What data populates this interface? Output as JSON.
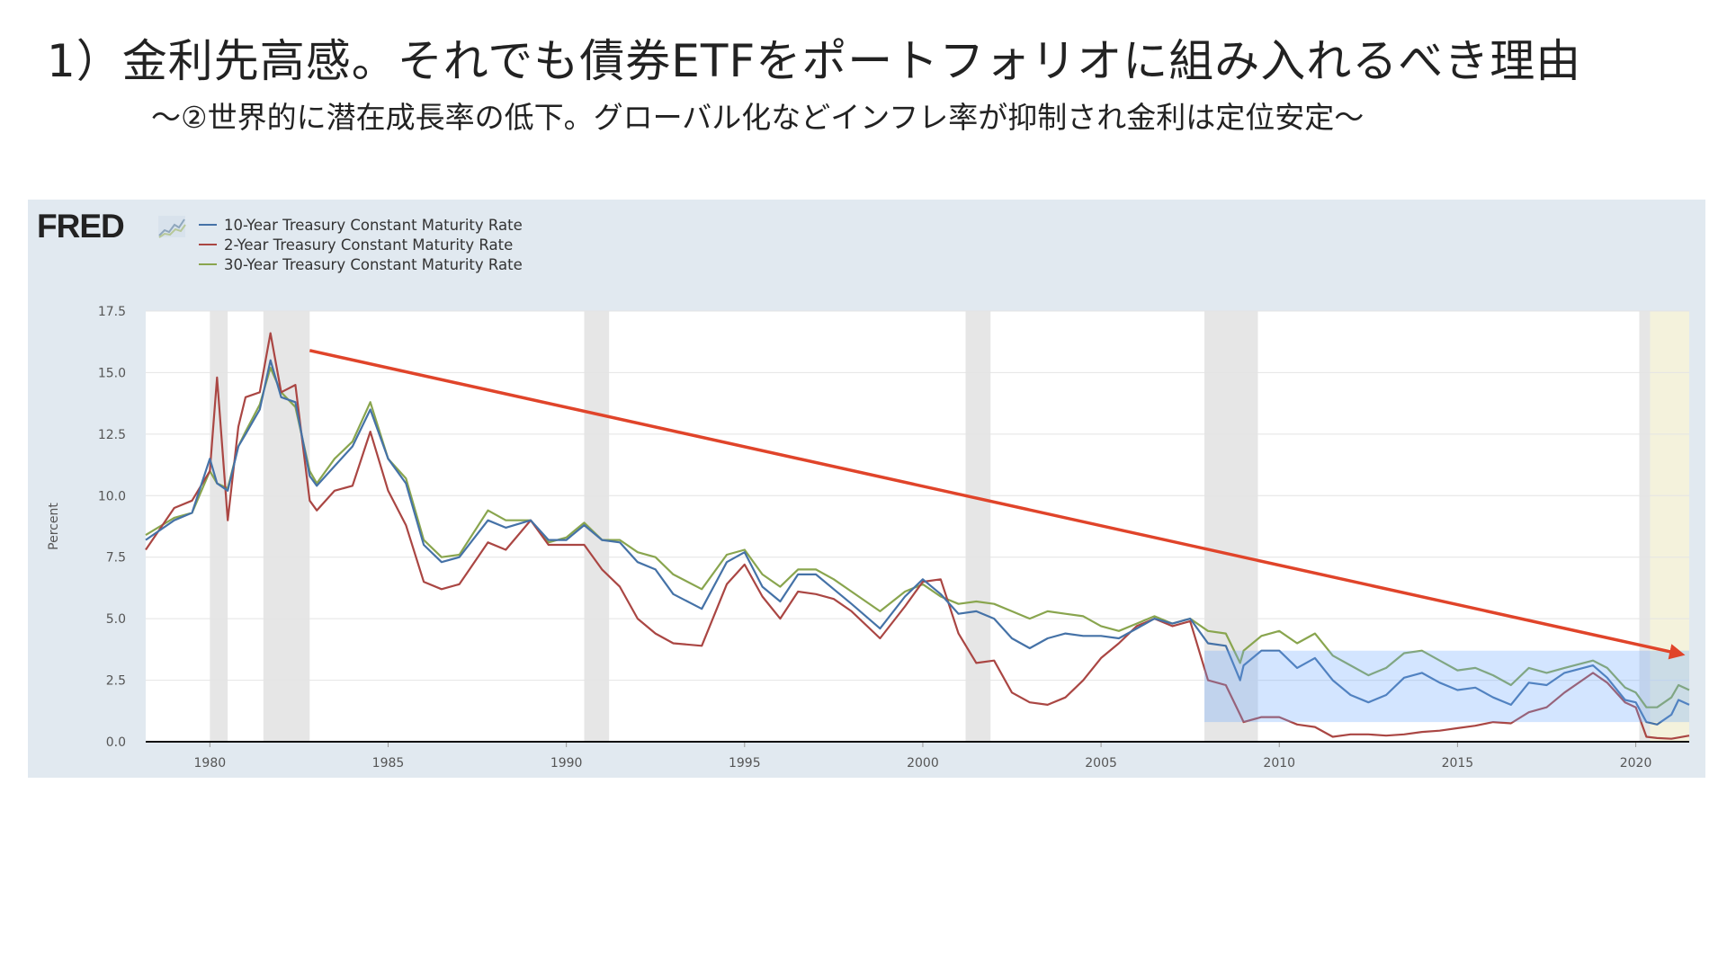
{
  "slide": {
    "title": "1）金利先高感。それでも債券ETFをポートフォリオに組み入れるべき理由",
    "subtitle": "〜②世界的に潜在成長率の低下。グローバル化などインフレ率が抑制され金利は定位安定〜"
  },
  "chart_data": {
    "type": "line",
    "source_logo": "FRED",
    "ylabel": "Percent",
    "xlim": [
      1978.2,
      2021.5
    ],
    "ylim": [
      0,
      17.5
    ],
    "yticks": [
      "0.0",
      "2.5",
      "5.0",
      "7.5",
      "10.0",
      "12.5",
      "15.0",
      "17.5"
    ],
    "xticks": [
      "1980",
      "1985",
      "1990",
      "1995",
      "2000",
      "2005",
      "2010",
      "2015",
      "2020"
    ],
    "recessions": [
      [
        1980.0,
        1980.5
      ],
      [
        1981.5,
        1982.8
      ],
      [
        1990.5,
        1991.2
      ],
      [
        2001.2,
        2001.9
      ],
      [
        2007.9,
        2009.4
      ],
      [
        2020.1,
        2020.4
      ]
    ],
    "highlight_period": [
      2020.1,
      2021.5
    ],
    "annotation_box": {
      "x": [
        2007.9,
        2021.5
      ],
      "y": [
        0.8,
        3.7
      ]
    },
    "trend_arrow": {
      "from": [
        1982.8,
        15.9
      ],
      "to": [
        2021.3,
        3.55
      ]
    },
    "x": [
      1978.2,
      1979.0,
      1979.5,
      1980.0,
      1980.2,
      1980.5,
      1980.8,
      1981.0,
      1981.4,
      1981.7,
      1982.0,
      1982.4,
      1982.8,
      1983.0,
      1983.5,
      1984.0,
      1984.5,
      1985.0,
      1985.5,
      1986.0,
      1986.5,
      1987.0,
      1987.8,
      1988.3,
      1989.0,
      1989.5,
      1990.0,
      1990.5,
      1991.0,
      1991.5,
      1992.0,
      1992.5,
      1993.0,
      1993.8,
      1994.5,
      1995.0,
      1995.5,
      1996.0,
      1996.5,
      1997.0,
      1997.5,
      1998.0,
      1998.8,
      1999.5,
      2000.0,
      2000.5,
      2001.0,
      2001.5,
      2002.0,
      2002.5,
      2003.0,
      2003.5,
      2004.0,
      2004.5,
      2005.0,
      2005.5,
      2006.0,
      2006.5,
      2007.0,
      2007.5,
      2008.0,
      2008.5,
      2008.9,
      2009.0,
      2009.5,
      2010.0,
      2010.5,
      2011.0,
      2011.5,
      2012.0,
      2012.5,
      2013.0,
      2013.5,
      2014.0,
      2014.5,
      2015.0,
      2015.5,
      2016.0,
      2016.5,
      2017.0,
      2017.5,
      2018.0,
      2018.8,
      2019.2,
      2019.7,
      2020.0,
      2020.3,
      2020.6,
      2021.0,
      2021.2,
      2021.5
    ],
    "series": [
      {
        "name": "10-Year Treasury Constant Maturity Rate",
        "color": "#4572a7",
        "values": [
          8.2,
          9.0,
          9.3,
          11.5,
          10.5,
          10.2,
          12.0,
          12.5,
          13.5,
          15.5,
          14.0,
          13.8,
          10.8,
          10.4,
          11.2,
          12.0,
          13.5,
          11.5,
          10.5,
          8.0,
          7.3,
          7.5,
          9.0,
          8.7,
          9.0,
          8.2,
          8.2,
          8.8,
          8.2,
          8.1,
          7.3,
          7.0,
          6.0,
          5.4,
          7.3,
          7.7,
          6.3,
          5.7,
          6.8,
          6.8,
          6.2,
          5.6,
          4.6,
          5.9,
          6.6,
          6.0,
          5.2,
          5.3,
          5.0,
          4.2,
          3.8,
          4.2,
          4.4,
          4.3,
          4.3,
          4.2,
          4.6,
          5.0,
          4.8,
          5.0,
          4.0,
          3.9,
          2.5,
          3.1,
          3.7,
          3.7,
          3.0,
          3.4,
          2.5,
          1.9,
          1.6,
          1.9,
          2.6,
          2.8,
          2.4,
          2.1,
          2.2,
          1.8,
          1.5,
          2.4,
          2.3,
          2.8,
          3.1,
          2.6,
          1.7,
          1.6,
          0.8,
          0.7,
          1.1,
          1.7,
          1.5
        ]
      },
      {
        "name": "2-Year Treasury Constant Maturity Rate",
        "color": "#aa4643",
        "values": [
          7.8,
          9.5,
          9.8,
          11.0,
          14.8,
          9.0,
          12.8,
          14.0,
          14.2,
          16.6,
          14.2,
          14.5,
          9.8,
          9.4,
          10.2,
          10.4,
          12.6,
          10.2,
          8.8,
          6.5,
          6.2,
          6.4,
          8.1,
          7.8,
          9.0,
          8.0,
          8.0,
          8.0,
          7.0,
          6.3,
          5.0,
          4.4,
          4.0,
          3.9,
          6.4,
          7.2,
          5.9,
          5.0,
          6.1,
          6.0,
          5.8,
          5.3,
          4.2,
          5.5,
          6.5,
          6.6,
          4.4,
          3.2,
          3.3,
          2.0,
          1.6,
          1.5,
          1.8,
          2.5,
          3.4,
          4.0,
          4.7,
          5.0,
          4.7,
          4.9,
          2.5,
          2.3,
          1.1,
          0.8,
          1.0,
          1.0,
          0.7,
          0.6,
          0.2,
          0.3,
          0.3,
          0.25,
          0.3,
          0.4,
          0.45,
          0.55,
          0.65,
          0.8,
          0.75,
          1.2,
          1.4,
          2.0,
          2.8,
          2.4,
          1.6,
          1.4,
          0.2,
          0.15,
          0.12,
          0.17,
          0.25
        ]
      },
      {
        "name": "30-Year Treasury Constant Maturity Rate",
        "color": "#89a54e",
        "values": [
          8.4,
          9.1,
          9.3,
          11.0,
          10.5,
          10.3,
          12.0,
          12.6,
          13.7,
          15.2,
          14.2,
          13.6,
          11.0,
          10.5,
          11.5,
          12.2,
          13.8,
          11.5,
          10.7,
          8.2,
          7.5,
          7.6,
          9.4,
          9.0,
          9.0,
          8.1,
          8.3,
          8.9,
          8.2,
          8.2,
          7.7,
          7.5,
          6.8,
          6.2,
          7.6,
          7.8,
          6.8,
          6.3,
          7.0,
          7.0,
          6.6,
          6.1,
          5.3,
          6.1,
          6.4,
          5.9,
          5.6,
          5.7,
          5.6,
          5.3,
          5.0,
          5.3,
          5.2,
          5.1,
          4.7,
          4.5,
          4.8,
          5.1,
          4.8,
          5.0,
          4.5,
          4.4,
          3.2,
          3.7,
          4.3,
          4.5,
          4.0,
          4.4,
          3.5,
          3.1,
          2.7,
          3.0,
          3.6,
          3.7,
          3.3,
          2.9,
          3.0,
          2.7,
          2.3,
          3.0,
          2.8,
          3.0,
          3.3,
          3.0,
          2.2,
          2.0,
          1.4,
          1.4,
          1.8,
          2.3,
          2.1
        ]
      }
    ]
  }
}
